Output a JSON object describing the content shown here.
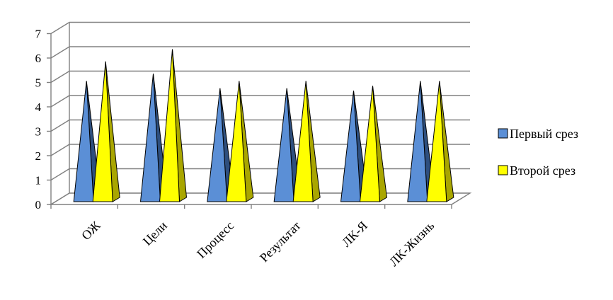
{
  "chart_data": {
    "type": "bar",
    "style": "3d-pyramid",
    "categories": [
      "ОЖ",
      "Цели",
      "Процесс",
      "Результат",
      "ЛК-Я",
      "ЛК-Жизнь"
    ],
    "series": [
      {
        "name": "Первый срез",
        "values": [
          5.0,
          5.3,
          4.7,
          4.7,
          4.6,
          5.0
        ],
        "color": "#5b8fd6",
        "dark": "#2e4f7e"
      },
      {
        "name": "Второй срез",
        "values": [
          5.8,
          6.3,
          5.0,
          5.0,
          4.8,
          5.0
        ],
        "color": "#ffff00",
        "dark": "#a9a600"
      }
    ],
    "y_ticks": [
      "0",
      "1",
      "2",
      "3",
      "4",
      "5",
      "6",
      "7"
    ],
    "ylim": [
      0,
      7
    ],
    "grid": true,
    "legend": "right"
  }
}
